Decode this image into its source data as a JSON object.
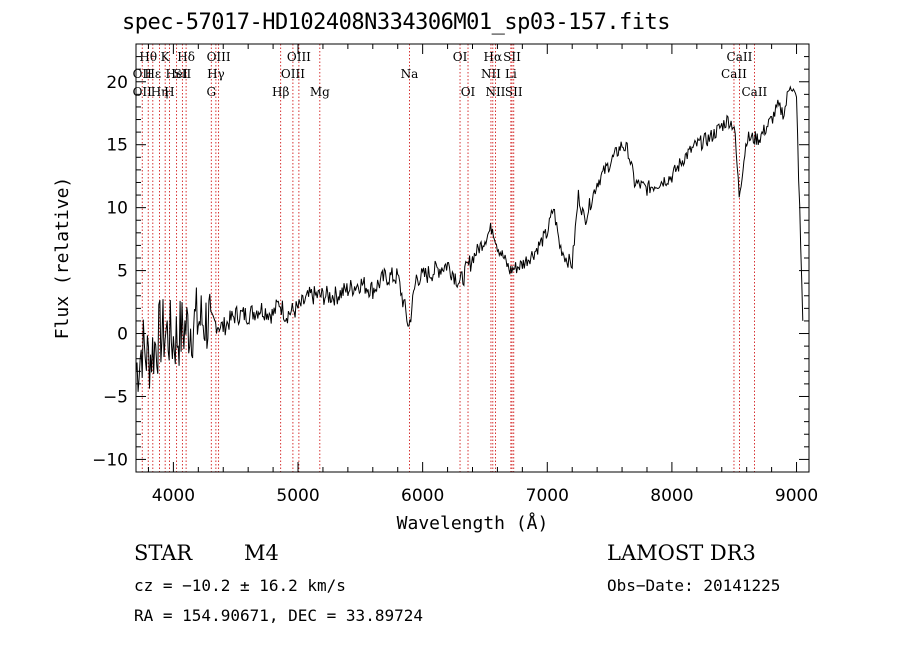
{
  "chart_data": {
    "type": "line",
    "title": "spec-57017-HD102408N334306M01_sp03-157.fits",
    "xlabel": "Wavelength (Å)",
    "ylabel": "Flux (relative)",
    "xlim": [
      3700,
      9100
    ],
    "ylim": [
      -11,
      23
    ],
    "xticks": [
      4000,
      5000,
      6000,
      7000,
      8000,
      9000
    ],
    "yticks": [
      -10,
      -5,
      0,
      5,
      10,
      15,
      20
    ],
    "series": [
      {
        "name": "spectrum",
        "x": [
          3700,
          3750,
          3800,
          3850,
          3900,
          3950,
          4000,
          4100,
          4200,
          4300,
          4400,
          4500,
          4600,
          4700,
          4800,
          4850,
          4900,
          5000,
          5100,
          5200,
          5300,
          5400,
          5500,
          5600,
          5700,
          5800,
          5890,
          5950,
          6000,
          6100,
          6200,
          6300,
          6400,
          6500,
          6560,
          6600,
          6700,
          6800,
          6900,
          7000,
          7050,
          7100,
          7150,
          7200,
          7250,
          7300,
          7400,
          7500,
          7600,
          7650,
          7700,
          7800,
          7900,
          8000,
          8100,
          8200,
          8300,
          8400,
          8450,
          8500,
          8540,
          8600,
          8700,
          8800,
          8850,
          8900,
          8950,
          9000,
          9050
        ],
        "y": [
          -3,
          -1,
          -2,
          -1,
          0,
          0,
          -0.5,
          0.5,
          1,
          1,
          0.5,
          1.5,
          1.5,
          2,
          1.5,
          2.5,
          1.5,
          2,
          3,
          3,
          3,
          3.5,
          4,
          3.5,
          4.5,
          4.5,
          0.5,
          4.5,
          4.5,
          5,
          5.5,
          4,
          6,
          7.5,
          8.5,
          7,
          5,
          5.5,
          6.5,
          8,
          10,
          7,
          6,
          5.5,
          11,
          9,
          12,
          13.5,
          15,
          14.5,
          12,
          11.5,
          12,
          12.5,
          14,
          15,
          15.5,
          16.5,
          17,
          16.5,
          11,
          15.5,
          15.5,
          17,
          18,
          17.5,
          20,
          18.5,
          1
        ]
      }
    ],
    "line_labels": [
      {
        "wavelength": 3750,
        "text": "OII",
        "row": 2
      },
      {
        "wavelength": 3750,
        "text": "OII",
        "row": 3
      },
      {
        "wavelength": 3798,
        "text": "Hθ",
        "row": 1
      },
      {
        "wavelength": 3835,
        "text": "Hε",
        "row": 2
      },
      {
        "wavelength": 3889,
        "text": "Hη",
        "row": 3
      },
      {
        "wavelength": 3934,
        "text": "K",
        "row": 1
      },
      {
        "wavelength": 3968,
        "text": "H",
        "row": 3
      },
      {
        "wavelength": 4026,
        "text": "HeI",
        "row": 2
      },
      {
        "wavelength": 4072,
        "text": "SII",
        "row": 2
      },
      {
        "wavelength": 4102,
        "text": "Hδ",
        "row": 1
      },
      {
        "wavelength": 4304,
        "text": "G",
        "row": 3
      },
      {
        "wavelength": 4341,
        "text": "Hγ",
        "row": 2
      },
      {
        "wavelength": 4363,
        "text": "OIII",
        "row": 1
      },
      {
        "wavelength": 4861,
        "text": "Hβ",
        "row": 3
      },
      {
        "wavelength": 4959,
        "text": "OIII",
        "row": 2
      },
      {
        "wavelength": 5007,
        "text": "OIII",
        "row": 1
      },
      {
        "wavelength": 5175,
        "text": "Mg",
        "row": 3
      },
      {
        "wavelength": 5894,
        "text": "Na",
        "row": 2
      },
      {
        "wavelength": 6300,
        "text": "OI",
        "row": 1
      },
      {
        "wavelength": 6364,
        "text": "OI",
        "row": 3
      },
      {
        "wavelength": 6548,
        "text": "NII",
        "row": 2
      },
      {
        "wavelength": 6563,
        "text": "Hα",
        "row": 1
      },
      {
        "wavelength": 6584,
        "text": "NII",
        "row": 3
      },
      {
        "wavelength": 6708,
        "text": "Li",
        "row": 2
      },
      {
        "wavelength": 6717,
        "text": "SII",
        "row": 1
      },
      {
        "wavelength": 6731,
        "text": "SII",
        "row": 3
      },
      {
        "wavelength": 8498,
        "text": "CaII",
        "row": 2
      },
      {
        "wavelength": 8542,
        "text": "CaII",
        "row": 1
      },
      {
        "wavelength": 8662,
        "text": "CaII",
        "row": 3
      }
    ]
  },
  "info": {
    "object_class": "STAR",
    "subclass": "M4",
    "survey": "LAMOST DR3",
    "redshift": "cz = −10.2 ± 16.2 km/s",
    "obs_date": "Obs−Date: 20141225",
    "coords": "RA = 154.90671, DEC =  33.89724"
  }
}
